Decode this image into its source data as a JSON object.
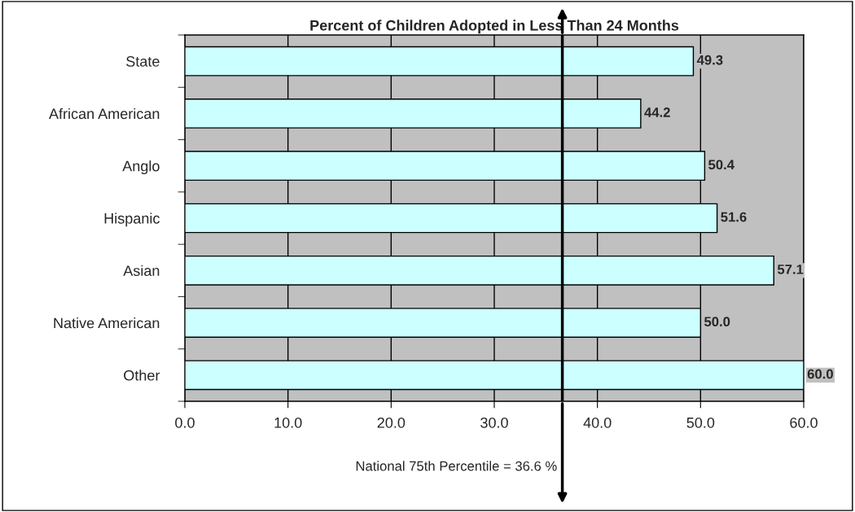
{
  "chart_data": {
    "type": "bar",
    "orientation": "horizontal",
    "title": "Percent of Children Adopted in Less Than 24 Months",
    "categories": [
      "State",
      "African American",
      "Anglo",
      "Hispanic",
      "Asian",
      "Native American",
      "Other"
    ],
    "values": [
      49.3,
      44.2,
      50.4,
      51.6,
      57.1,
      50.0,
      60.0
    ],
    "value_labels": [
      "49.3",
      "44.2",
      "50.4",
      "51.6",
      "57.1",
      "50.0",
      "60.0"
    ],
    "color": "#ccffff",
    "xlim": [
      0,
      60
    ],
    "xticks": [
      {
        "value": 0,
        "label": "0.0"
      },
      {
        "value": 10,
        "label": "10.0"
      },
      {
        "value": 20,
        "label": "20.0"
      },
      {
        "value": 30,
        "label": "30.0"
      },
      {
        "value": 40,
        "label": "40.0"
      },
      {
        "value": 50,
        "label": "50.0"
      },
      {
        "value": 60,
        "label": "60.0"
      }
    ],
    "grid": "x",
    "ref_lines": [
      {
        "axis": "x",
        "value": 36.6,
        "label": "National 75th Percentile = 36.6 %",
        "color": "#000000"
      }
    ]
  }
}
